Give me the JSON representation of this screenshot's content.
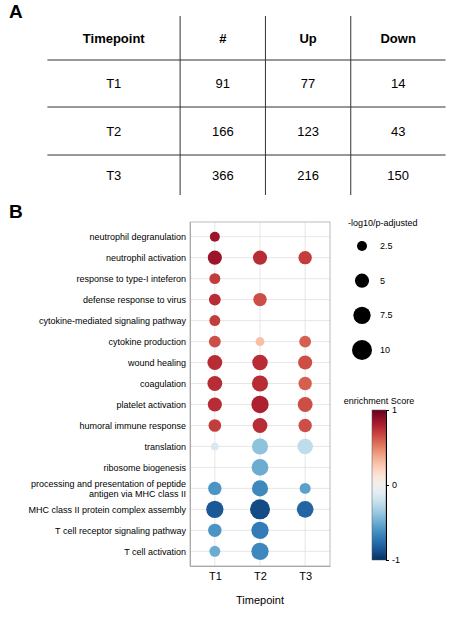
{
  "chart_data": [
    {
      "type": "table",
      "title": "A",
      "headers": [
        "Timepoint",
        "#",
        "Up",
        "Down"
      ],
      "rows": [
        [
          "T1",
          "91",
          "77",
          "14"
        ],
        [
          "T2",
          "166",
          "123",
          "43"
        ],
        [
          "T3",
          "366",
          "216",
          "150"
        ]
      ]
    },
    {
      "type": "bubble",
      "title": "B",
      "x_label": "Timepoint",
      "x": [
        "T1",
        "T2",
        "T3"
      ],
      "y": [
        "neutrophil degranulation",
        "neutrophil activation",
        "response to type-I inteferon",
        "defense response to virus",
        "cytokine-mediated signaling pathway",
        "cytokine production",
        "wound healing",
        "coagulation",
        "platelet activation",
        "humoral immune response",
        "translation",
        "ribosome biogenesis",
        "processing and presentation of peptide\nantigen via MHC class II",
        "MHC class II protein complex assembly",
        "T cell receptor signaling pathway",
        "T cell activation"
      ],
      "sizes": [
        [
          2.5,
          0,
          0
        ],
        [
          5.0,
          5.0,
          4.5
        ],
        [
          3.0,
          0,
          0
        ],
        [
          3.5,
          4.5,
          0
        ],
        [
          3.0,
          0,
          0
        ],
        [
          3.5,
          2.0,
          3.5
        ],
        [
          5.5,
          6.0,
          5.0
        ],
        [
          5.5,
          6.5,
          4.5
        ],
        [
          5.0,
          7.5,
          5.5
        ],
        [
          4.0,
          5.5,
          4.5
        ],
        [
          1.5,
          6.5,
          6.0
        ],
        [
          0,
          7.0,
          0
        ],
        [
          4.5,
          6.5,
          3.0
        ],
        [
          7.5,
          10.0,
          7.0
        ],
        [
          4.5,
          7.5,
          0
        ],
        [
          3.0,
          7.5,
          0
        ]
      ],
      "values": [
        [
          0.85,
          0,
          0
        ],
        [
          0.85,
          0.75,
          0.7
        ],
        [
          0.7,
          0,
          0
        ],
        [
          0.75,
          0.65,
          0
        ],
        [
          0.7,
          0,
          0
        ],
        [
          0.65,
          0.3,
          0.6
        ],
        [
          0.75,
          0.75,
          0.65
        ],
        [
          0.75,
          0.75,
          0.6
        ],
        [
          0.75,
          0.8,
          0.65
        ],
        [
          0.7,
          0.75,
          0.65
        ],
        [
          -0.15,
          -0.4,
          -0.25
        ],
        [
          0,
          -0.5,
          0
        ],
        [
          -0.6,
          -0.65,
          -0.55
        ],
        [
          -0.85,
          -0.9,
          -0.8
        ],
        [
          -0.6,
          -0.7,
          0
        ],
        [
          -0.5,
          -0.65,
          0
        ]
      ],
      "grid": true,
      "size_legend": {
        "title": "-log10/p-adjusted",
        "values": [
          2.5,
          5,
          7.5,
          10
        ]
      },
      "colorbar": {
        "title": "enrichment Score",
        "range": [
          -1,
          1
        ],
        "ticks": [
          -1,
          0,
          1
        ]
      }
    }
  ]
}
